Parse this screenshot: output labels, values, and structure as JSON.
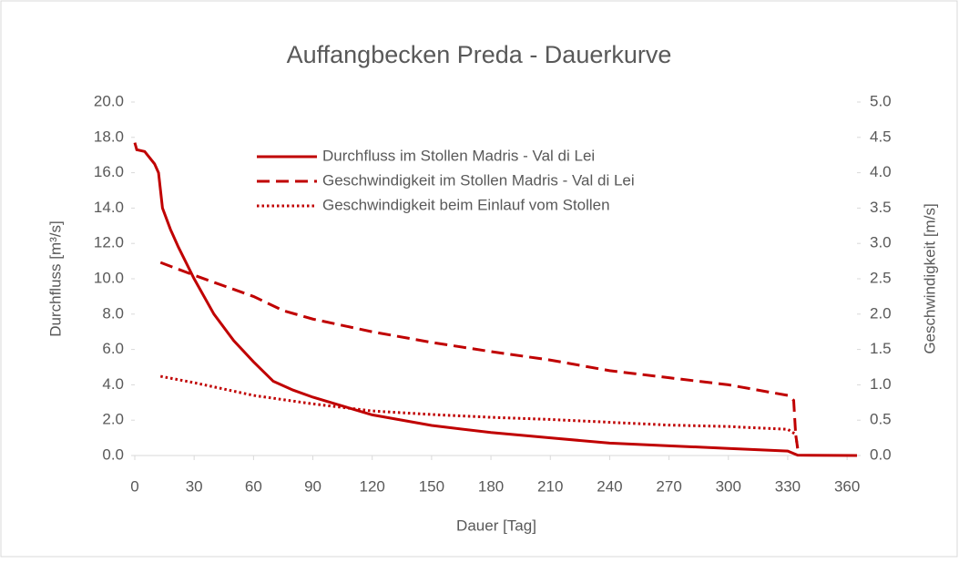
{
  "chart_data": {
    "type": "line",
    "title": "Auffangbecken Preda - Dauerkurve",
    "xlabel": "Dauer [Tag]",
    "ylabel": "Durchfluss [m³/s]",
    "y2label": "Geschwindigkeit [m/s]",
    "xlim": [
      0,
      365
    ],
    "xticks": [
      0,
      30,
      60,
      90,
      120,
      150,
      180,
      210,
      240,
      270,
      300,
      330,
      360
    ],
    "ylim": [
      0,
      20
    ],
    "yticks": [
      {
        "value": 0,
        "label": "0.0"
      },
      {
        "value": 2,
        "label": "2.0"
      },
      {
        "value": 4,
        "label": "4.0"
      },
      {
        "value": 6,
        "label": "6.0"
      },
      {
        "value": 8,
        "label": "8.0"
      },
      {
        "value": 10,
        "label": "10.0"
      },
      {
        "value": 12,
        "label": "12.0"
      },
      {
        "value": 14,
        "label": "14.0"
      },
      {
        "value": 16,
        "label": "16.0"
      },
      {
        "value": 18,
        "label": "18.0"
      },
      {
        "value": 20,
        "label": "20.0"
      }
    ],
    "y2lim": [
      0,
      5
    ],
    "y2ticks": [
      {
        "value": 0,
        "label": "0.0"
      },
      {
        "value": 0.5,
        "label": "0.5"
      },
      {
        "value": 1,
        "label": "1.0"
      },
      {
        "value": 1.5,
        "label": "1.5"
      },
      {
        "value": 2,
        "label": "2.0"
      },
      {
        "value": 2.5,
        "label": "2.5"
      },
      {
        "value": 3,
        "label": "3.0"
      },
      {
        "value": 3.5,
        "label": "3.5"
      },
      {
        "value": 4,
        "label": "4.0"
      },
      {
        "value": 4.5,
        "label": "4.5"
      },
      {
        "value": 5,
        "label": "5.0"
      }
    ],
    "series": [
      {
        "name": "Durchfluss im Stollen Madris - Val di Lei",
        "color": "#c00000",
        "dash": "solid",
        "axis": "y",
        "x": [
          0,
          1,
          5,
          10,
          12,
          14,
          18,
          22,
          30,
          40,
          50,
          60,
          70,
          80,
          90,
          105,
          120,
          150,
          180,
          210,
          240,
          270,
          300,
          330,
          335,
          365
        ],
        "values": [
          17.7,
          17.3,
          17.2,
          16.5,
          16.0,
          14.0,
          12.8,
          11.8,
          10.0,
          8.0,
          6.5,
          5.3,
          4.2,
          3.7,
          3.3,
          2.8,
          2.3,
          1.7,
          1.3,
          1.0,
          0.7,
          0.55,
          0.4,
          0.25,
          0.02,
          0.0
        ]
      },
      {
        "name": "Geschwindigkeit im Stollen Madris - Val di Lei",
        "color": "#c00000",
        "dash": "dashed",
        "axis": "y2",
        "x": [
          13,
          30,
          60,
          75,
          90,
          120,
          150,
          180,
          210,
          240,
          270,
          300,
          330,
          333,
          334,
          335
        ],
        "values": [
          2.73,
          2.55,
          2.25,
          2.05,
          1.93,
          1.75,
          1.6,
          1.47,
          1.35,
          1.2,
          1.1,
          1.0,
          0.85,
          0.78,
          0.3,
          0.1
        ]
      },
      {
        "name": "Geschwindigkeit beim Einlauf vom Stollen",
        "color": "#c00000",
        "dash": "dotted",
        "axis": "y2",
        "x": [
          13,
          30,
          60,
          90,
          120,
          150,
          180,
          210,
          240,
          270,
          300,
          330,
          334,
          335
        ],
        "values": [
          1.12,
          1.03,
          0.85,
          0.73,
          0.63,
          0.58,
          0.54,
          0.51,
          0.47,
          0.43,
          0.41,
          0.37,
          0.3,
          0.1
        ]
      }
    ]
  }
}
